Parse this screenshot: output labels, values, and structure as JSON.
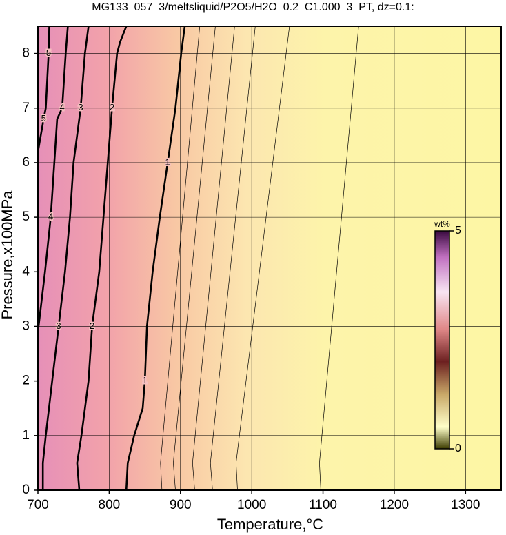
{
  "chart_data": {
    "type": "contour",
    "title": "MG133_057_3/meltsliquid/P2O5/H2O_0.2_C1.000_3_PT, dz=0.1:",
    "x_label": "Temperature,°C",
    "y_label": "Pressure,x100MPa",
    "xlim": [
      700,
      1350
    ],
    "ylim": [
      0,
      8.5
    ],
    "xticks": [
      700,
      800,
      900,
      1000,
      1100,
      1200,
      1300
    ],
    "yticks": [
      0,
      1,
      2,
      3,
      4,
      5,
      6,
      7,
      8
    ],
    "grid": true,
    "contours": [
      {
        "level": 1,
        "y": [
          0,
          0.5,
          1,
          1.5,
          2,
          3,
          4,
          5,
          6,
          7,
          8,
          8.5
        ],
        "x": [
          824,
          826,
          835,
          847,
          850,
          853,
          861,
          871,
          882,
          893,
          901,
          906
        ]
      },
      {
        "level": 2,
        "y": [
          0,
          0.5,
          1,
          2,
          3,
          4,
          5,
          6,
          7,
          8,
          8.2,
          8.5
        ],
        "x": [
          758,
          755,
          761,
          771,
          776,
          786,
          792,
          798,
          804,
          811,
          815,
          824
        ]
      },
      {
        "level": 3,
        "y": [
          0,
          0.5,
          1,
          2,
          3,
          4,
          5,
          6,
          7,
          8,
          8.5
        ],
        "x": [
          707,
          707,
          711,
          720,
          729,
          738,
          745,
          750,
          760,
          766,
          771
        ]
      },
      {
        "level": 4,
        "y": [
          2.9,
          4,
          5,
          6,
          6.8,
          7,
          8,
          8.5
        ],
        "x": [
          700,
          710,
          718,
          723,
          727,
          734,
          739,
          742
        ]
      },
      {
        "level": 5,
        "y": [
          6.2,
          6.8,
          7,
          8,
          8.5
        ],
        "x": [
          700,
          708,
          711,
          715,
          716
        ]
      }
    ],
    "minor_contours": [
      {
        "y": [
          0,
          0.5,
          8.5
        ],
        "x": [
          874,
          872,
          927
        ]
      },
      {
        "y": [
          0,
          0.5,
          8.5
        ],
        "x": [
          893,
          890,
          949
        ]
      },
      {
        "y": [
          0,
          0.5,
          8.5
        ],
        "x": [
          920,
          917,
          976
        ]
      },
      {
        "y": [
          0,
          0.5,
          8.5
        ],
        "x": [
          945,
          942,
          1005
        ]
      },
      {
        "y": [
          0,
          0.5,
          8.5
        ],
        "x": [
          980,
          978,
          1053
        ]
      },
      {
        "y": [
          0,
          0.5,
          8.5
        ],
        "x": [
          1097,
          1095,
          1150
        ]
      }
    ],
    "colorbar": {
      "label": "wt%",
      "lim": [
        0,
        5
      ],
      "ticks": [
        0,
        5
      ]
    }
  }
}
